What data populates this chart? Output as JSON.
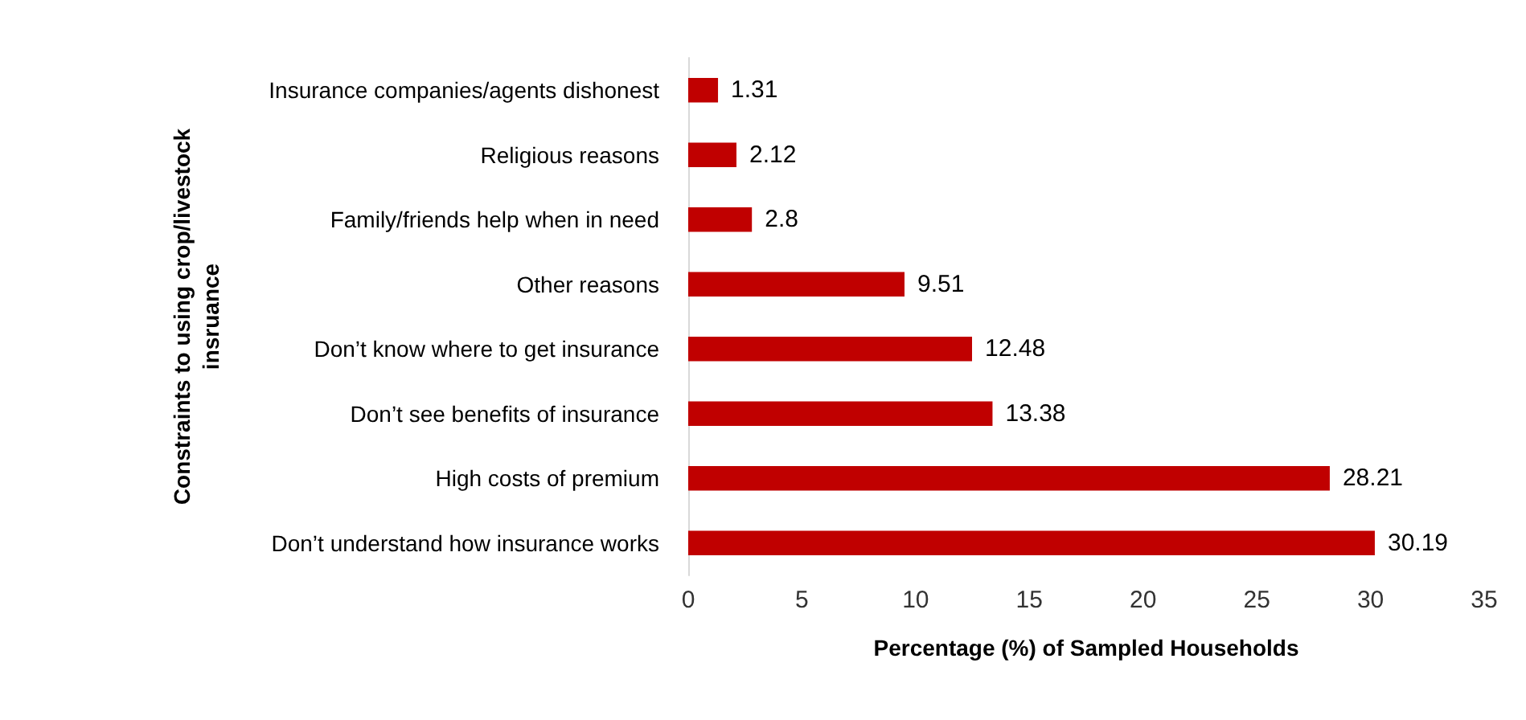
{
  "chart_data": {
    "type": "bar",
    "orientation": "horizontal",
    "ylabel": "Constraints to using crop/livestock insruance",
    "xlabel": "Percentage (%) of Sampled Households",
    "categories": [
      "Insurance companies/agents dishonest",
      "Religious reasons",
      "Family/friends help when in need",
      "Other reasons",
      "Don’t know where to get insurance",
      "Don’t see benefits of insurance",
      "High costs of premium",
      "Don’t understand how insurance works"
    ],
    "values": [
      1.31,
      2.12,
      2.8,
      9.51,
      12.48,
      13.38,
      28.21,
      30.19
    ],
    "color": "#c00000",
    "xlim": [
      0,
      35
    ],
    "xticks": [
      0,
      5,
      10,
      15,
      20,
      25,
      30,
      35
    ],
    "grid": false,
    "data_labels": true
  }
}
